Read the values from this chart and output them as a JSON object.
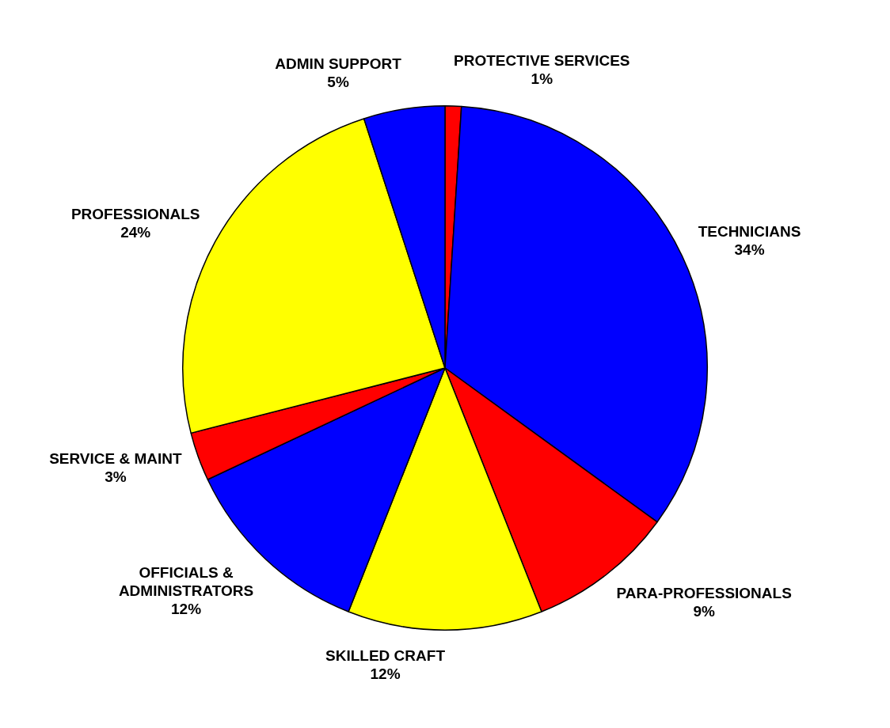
{
  "chart_data": {
    "type": "pie",
    "categories": [
      "PROTECTIVE SERVICES",
      "TECHNICIANS",
      "PARA-PROFESSIONALS",
      "SKILLED CRAFT",
      "OFFICIALS & ADMINISTRATORS",
      "SERVICE & MAINT",
      "PROFESSIONALS",
      "ADMIN SUPPORT"
    ],
    "values": [
      1,
      34,
      9,
      12,
      12,
      3,
      24,
      5
    ],
    "value_labels": [
      "1%",
      "34%",
      "9%",
      "12%",
      "12%",
      "3%",
      "24%",
      "5%"
    ],
    "colors": [
      "#ff0000",
      "#0000ff",
      "#ff0000",
      "#ffff00",
      "#0000ff",
      "#ff0000",
      "#ffff00",
      "#0000ff"
    ],
    "legend": false
  }
}
